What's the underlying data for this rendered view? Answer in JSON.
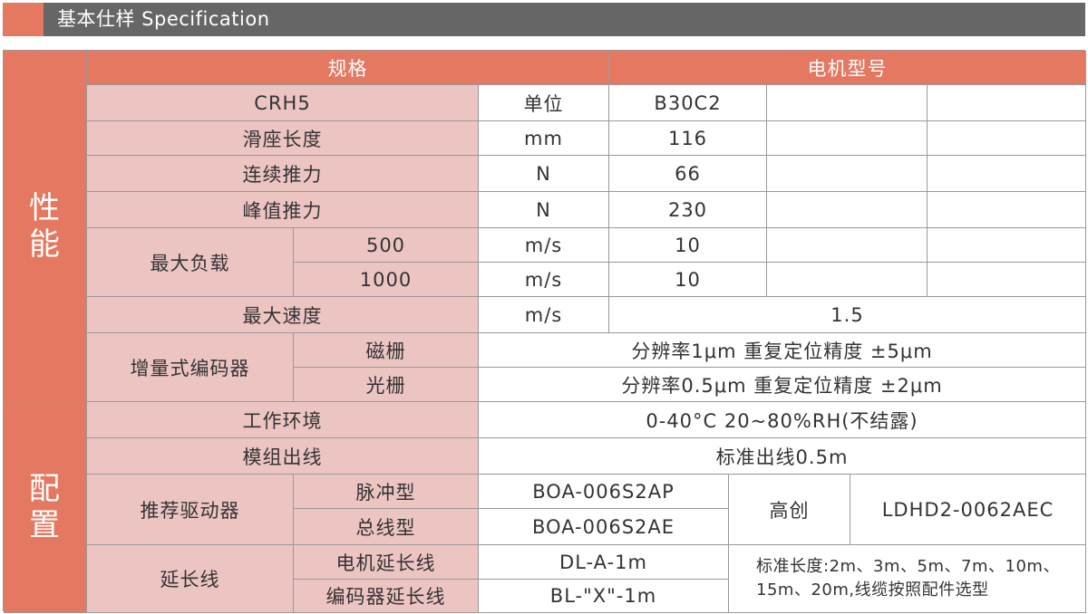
{
  "header": {
    "title": "基本仕样 Specification",
    "accent": "#e47860",
    "bar_color": "#666666"
  },
  "table": {
    "section_performance": "性能",
    "section_config": "配置",
    "col_spec": "规格",
    "col_motor": "电机型号",
    "model": "CRH5",
    "unit_label": "单位",
    "motor_model": "B30C2",
    "rows": {
      "slide_length": {
        "label": "滑座长度",
        "unit": "mm",
        "value": "116"
      },
      "continuous_force": {
        "label": "连续推力",
        "unit": "N",
        "value": "66"
      },
      "peak_force": {
        "label": "峰值推力",
        "unit": "N",
        "value": "230"
      },
      "max_load": {
        "label": "最大负载",
        "sub": [
          {
            "label": "500",
            "unit": "m/s",
            "value": "10"
          },
          {
            "label": "1000",
            "unit": "m/s",
            "value": "10"
          }
        ]
      },
      "max_speed": {
        "label": "最大速度",
        "unit": "m/s",
        "value": "1.5"
      },
      "encoder": {
        "label": "增量式编码器",
        "sub": [
          {
            "label": "磁栅",
            "value": "分辨率1μm 重复定位精度 ±5μm"
          },
          {
            "label": "光栅",
            "value": "分辨率0.5μm 重复定位精度 ±2μm"
          }
        ]
      },
      "environment": {
        "label": "工作环境",
        "value": "0-40°C 20~80%RH(不结露)"
      },
      "cable_out": {
        "label": "模组出线",
        "value": "标准出线0.5m"
      },
      "driver": {
        "label": "推荐驱动器",
        "sub": [
          {
            "label": "脉冲型",
            "value": "BOA-006S2AP"
          },
          {
            "label": "总线型",
            "value": "BOA-006S2AE"
          }
        ],
        "brand": "高创",
        "alt_model": "LDHD2-0062AEC"
      },
      "extension": {
        "label": "延长线",
        "sub": [
          {
            "label": "电机延长线",
            "value": "DL-A-1m"
          },
          {
            "label": "编码器延长线",
            "value": "BL-\"X\"-1m"
          }
        ],
        "note": "标准长度:2m、3m、5m、7m、10m、15m、20m,线缆按照配件选型"
      }
    }
  }
}
